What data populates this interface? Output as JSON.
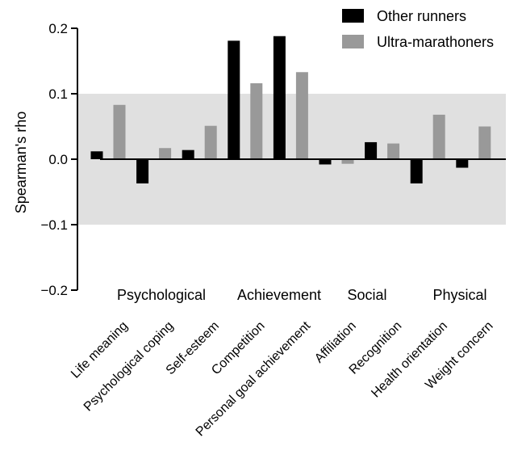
{
  "chart_data": {
    "type": "bar",
    "title": "",
    "xlabel": "",
    "ylabel": "Spearman's rho",
    "ylim": [
      -0.2,
      0.2
    ],
    "yticks": [
      0.2,
      0.1,
      0.0,
      -0.1,
      -0.2
    ],
    "ytick_labels": [
      "0.2",
      "0.1",
      "0.0",
      "−0.1",
      "−0.2"
    ],
    "shaded_band": [
      -0.1,
      0.1
    ],
    "legend_position": "top-right",
    "categories": [
      "Life meaning",
      "Psychological coping",
      "Self-esteem",
      "Competition",
      "Personal goal achievement",
      "Affiliation",
      "Recognition",
      "Health orientation",
      "Weight concern"
    ],
    "groups": [
      {
        "label": "Psychological",
        "categories": [
          "Life meaning",
          "Psychological coping",
          "Self-esteem"
        ]
      },
      {
        "label": "Achievement",
        "categories": [
          "Competition",
          "Personal goal achievement"
        ]
      },
      {
        "label": "Social",
        "categories": [
          "Affiliation",
          "Recognition"
        ]
      },
      {
        "label": "Physical",
        "categories": [
          "Health orientation",
          "Weight concern"
        ]
      }
    ],
    "series": [
      {
        "name": "Other runners",
        "color": "#000000",
        "values": [
          0.012,
          -0.037,
          0.014,
          0.181,
          0.188,
          -0.008,
          0.026,
          -0.037,
          -0.013
        ]
      },
      {
        "name": "Ultra-marathoners",
        "color": "#999999",
        "values": [
          0.083,
          0.017,
          0.051,
          0.116,
          0.133,
          -0.007,
          0.024,
          0.068,
          0.05
        ]
      }
    ]
  }
}
